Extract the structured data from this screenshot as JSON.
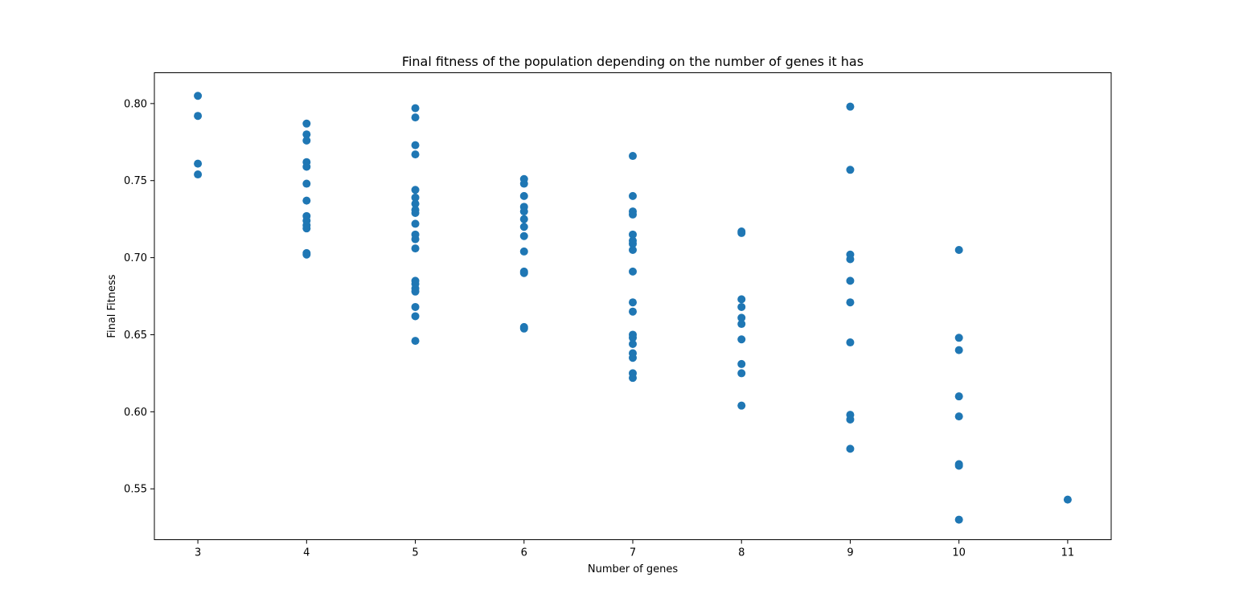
{
  "chart_data": {
    "type": "scatter",
    "title": "Final fitness of the population depending on the number of genes it has",
    "xlabel": "Number of genes",
    "ylabel": "Final Fitness",
    "xlim": [
      2.6,
      11.4
    ],
    "ylim": [
      0.517,
      0.82
    ],
    "grid": false,
    "legend": "none",
    "xticks": [
      {
        "value": 3,
        "label": "3"
      },
      {
        "value": 4,
        "label": "4"
      },
      {
        "value": 5,
        "label": "5"
      },
      {
        "value": 6,
        "label": "6"
      },
      {
        "value": 7,
        "label": "7"
      },
      {
        "value": 8,
        "label": "8"
      },
      {
        "value": 9,
        "label": "9"
      },
      {
        "value": 10,
        "label": "10"
      },
      {
        "value": 11,
        "label": "11"
      }
    ],
    "yticks": [
      {
        "value": 0.55,
        "label": "0.55"
      },
      {
        "value": 0.6,
        "label": "0.60"
      },
      {
        "value": 0.65,
        "label": "0.65"
      },
      {
        "value": 0.7,
        "label": "0.70"
      },
      {
        "value": 0.75,
        "label": "0.75"
      },
      {
        "value": 0.8,
        "label": "0.80"
      }
    ],
    "color": "#1f77b4",
    "points": [
      {
        "x": 3,
        "y": 0.805
      },
      {
        "x": 3,
        "y": 0.792
      },
      {
        "x": 3,
        "y": 0.761
      },
      {
        "x": 3,
        "y": 0.754
      },
      {
        "x": 4,
        "y": 0.787
      },
      {
        "x": 4,
        "y": 0.78
      },
      {
        "x": 4,
        "y": 0.776
      },
      {
        "x": 4,
        "y": 0.762
      },
      {
        "x": 4,
        "y": 0.759
      },
      {
        "x": 4,
        "y": 0.748
      },
      {
        "x": 4,
        "y": 0.737
      },
      {
        "x": 4,
        "y": 0.727
      },
      {
        "x": 4,
        "y": 0.724
      },
      {
        "x": 4,
        "y": 0.721
      },
      {
        "x": 4,
        "y": 0.719
      },
      {
        "x": 4,
        "y": 0.703
      },
      {
        "x": 4,
        "y": 0.702
      },
      {
        "x": 5,
        "y": 0.797
      },
      {
        "x": 5,
        "y": 0.791
      },
      {
        "x": 5,
        "y": 0.773
      },
      {
        "x": 5,
        "y": 0.767
      },
      {
        "x": 5,
        "y": 0.744
      },
      {
        "x": 5,
        "y": 0.739
      },
      {
        "x": 5,
        "y": 0.735
      },
      {
        "x": 5,
        "y": 0.731
      },
      {
        "x": 5,
        "y": 0.729
      },
      {
        "x": 5,
        "y": 0.722
      },
      {
        "x": 5,
        "y": 0.715
      },
      {
        "x": 5,
        "y": 0.712
      },
      {
        "x": 5,
        "y": 0.706
      },
      {
        "x": 5,
        "y": 0.685
      },
      {
        "x": 5,
        "y": 0.683
      },
      {
        "x": 5,
        "y": 0.68
      },
      {
        "x": 5,
        "y": 0.678
      },
      {
        "x": 5,
        "y": 0.668
      },
      {
        "x": 5,
        "y": 0.662
      },
      {
        "x": 5,
        "y": 0.646
      },
      {
        "x": 6,
        "y": 0.751
      },
      {
        "x": 6,
        "y": 0.748
      },
      {
        "x": 6,
        "y": 0.74
      },
      {
        "x": 6,
        "y": 0.733
      },
      {
        "x": 6,
        "y": 0.73
      },
      {
        "x": 6,
        "y": 0.725
      },
      {
        "x": 6,
        "y": 0.72
      },
      {
        "x": 6,
        "y": 0.714
      },
      {
        "x": 6,
        "y": 0.704
      },
      {
        "x": 6,
        "y": 0.691
      },
      {
        "x": 6,
        "y": 0.69
      },
      {
        "x": 6,
        "y": 0.655
      },
      {
        "x": 6,
        "y": 0.654
      },
      {
        "x": 7,
        "y": 0.766
      },
      {
        "x": 7,
        "y": 0.74
      },
      {
        "x": 7,
        "y": 0.73
      },
      {
        "x": 7,
        "y": 0.728
      },
      {
        "x": 7,
        "y": 0.715
      },
      {
        "x": 7,
        "y": 0.711
      },
      {
        "x": 7,
        "y": 0.709
      },
      {
        "x": 7,
        "y": 0.705
      },
      {
        "x": 7,
        "y": 0.691
      },
      {
        "x": 7,
        "y": 0.671
      },
      {
        "x": 7,
        "y": 0.665
      },
      {
        "x": 7,
        "y": 0.65
      },
      {
        "x": 7,
        "y": 0.648
      },
      {
        "x": 7,
        "y": 0.644
      },
      {
        "x": 7,
        "y": 0.638
      },
      {
        "x": 7,
        "y": 0.635
      },
      {
        "x": 7,
        "y": 0.625
      },
      {
        "x": 7,
        "y": 0.622
      },
      {
        "x": 8,
        "y": 0.717
      },
      {
        "x": 8,
        "y": 0.716
      },
      {
        "x": 8,
        "y": 0.673
      },
      {
        "x": 8,
        "y": 0.668
      },
      {
        "x": 8,
        "y": 0.661
      },
      {
        "x": 8,
        "y": 0.657
      },
      {
        "x": 8,
        "y": 0.647
      },
      {
        "x": 8,
        "y": 0.631
      },
      {
        "x": 8,
        "y": 0.625
      },
      {
        "x": 8,
        "y": 0.604
      },
      {
        "x": 9,
        "y": 0.798
      },
      {
        "x": 9,
        "y": 0.757
      },
      {
        "x": 9,
        "y": 0.702
      },
      {
        "x": 9,
        "y": 0.699
      },
      {
        "x": 9,
        "y": 0.685
      },
      {
        "x": 9,
        "y": 0.671
      },
      {
        "x": 9,
        "y": 0.645
      },
      {
        "x": 9,
        "y": 0.598
      },
      {
        "x": 9,
        "y": 0.595
      },
      {
        "x": 9,
        "y": 0.576
      },
      {
        "x": 10,
        "y": 0.705
      },
      {
        "x": 10,
        "y": 0.648
      },
      {
        "x": 10,
        "y": 0.64
      },
      {
        "x": 10,
        "y": 0.61
      },
      {
        "x": 10,
        "y": 0.597
      },
      {
        "x": 10,
        "y": 0.566
      },
      {
        "x": 10,
        "y": 0.565
      },
      {
        "x": 10,
        "y": 0.53
      },
      {
        "x": 11,
        "y": 0.543
      }
    ]
  }
}
